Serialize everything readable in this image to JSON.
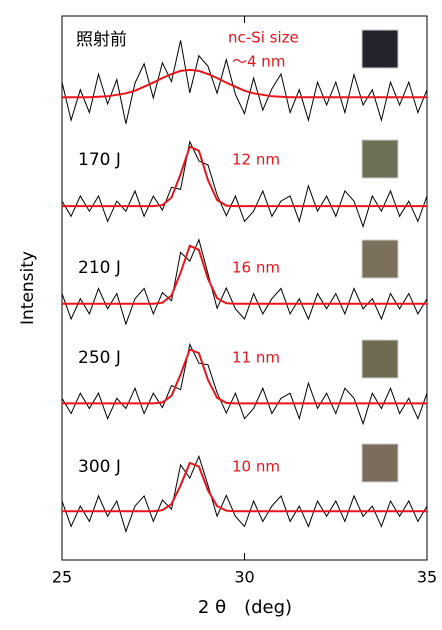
{
  "chart_data": {
    "type": "line",
    "xlabel": "2 θ　(deg)",
    "ylabel": "Intensity",
    "annotation": "nc-Si size",
    "x": [
      25,
      25.25,
      25.5,
      25.75,
      26,
      26.25,
      26.5,
      26.75,
      27,
      27.25,
      27.5,
      27.75,
      28,
      28.25,
      28.5,
      28.75,
      29,
      29.25,
      29.5,
      29.75,
      30,
      30.25,
      30.5,
      30.75,
      31,
      31.25,
      31.5,
      31.75,
      32,
      32.25,
      32.5,
      32.75,
      33,
      33.25,
      33.5,
      33.75,
      34,
      34.25,
      34.5,
      34.75,
      35
    ],
    "xlim": [
      25,
      35
    ],
    "xticks": [
      25,
      30,
      35
    ],
    "ylim": [
      0,
      107
    ],
    "color": "#000000",
    "fit_color": "#e8141a",
    "series": [
      {
        "name": "照射前",
        "size_label": "～4 nm",
        "values": [
          94,
          86.5,
          92.5,
          88,
          95.6,
          89.7,
          94.5,
          85.8,
          93.8,
          97.6,
          90.9,
          97.8,
          94.1,
          102.2,
          91.9,
          99.2,
          97.1,
          91.8,
          98.4,
          91.6,
          87.8,
          94.8,
          88.5,
          92.7,
          95.6,
          88,
          92.5,
          86.5,
          94,
          89.5,
          94,
          88,
          95.5,
          89.5,
          92.5,
          86.5,
          94,
          89.5,
          94,
          88,
          92.5
        ],
        "fit": [
          91,
          91,
          91,
          91,
          91.1,
          91.2,
          91.5,
          91.8,
          92.3,
          93.1,
          93.9,
          94.8,
          95.6,
          96.2,
          96.4,
          96.2,
          95.6,
          94.8,
          93.9,
          93.1,
          92.3,
          91.8,
          91.5,
          91.2,
          91.1,
          91,
          91,
          91,
          91,
          91,
          91,
          91,
          91,
          91,
          91,
          91,
          91,
          91,
          91,
          91,
          91
        ]
      },
      {
        "name": "170 J",
        "size_label": "12 nm",
        "values": [
          70.6,
          67.6,
          71.6,
          68.6,
          71.6,
          66.6,
          70.6,
          68.6,
          72.6,
          67.6,
          71.6,
          68.8,
          73.3,
          72.9,
          82.3,
          78.5,
          77.7,
          71.8,
          67.7,
          71.6,
          66.6,
          68.6,
          72.6,
          67.6,
          70.6,
          71.6,
          66.6,
          73.6,
          68.6,
          71.6,
          67.6,
          72.6,
          70.6,
          65.6,
          71.6,
          68.6,
          72.6,
          67.6,
          70.6,
          66.6,
          71.6
        ],
        "fit": [
          69.6,
          69.6,
          69.6,
          69.6,
          69.6,
          69.6,
          69.6,
          69.6,
          69.6,
          69.6,
          69.6,
          69.8,
          71.3,
          75.9,
          81.3,
          80.5,
          74.7,
          70.8,
          69.7,
          69.6,
          69.6,
          69.6,
          69.6,
          69.6,
          69.6,
          69.6,
          69.6,
          69.6,
          69.6,
          69.6,
          69.6,
          69.6,
          69.6,
          69.6,
          69.6,
          69.6,
          69.6,
          69.6,
          69.6,
          69.6,
          69.6
        ]
      },
      {
        "name": "210 J",
        "size_label": "16 nm",
        "values": [
          52.4,
          47.4,
          51.4,
          48.4,
          53.4,
          49.4,
          52.4,
          46.4,
          51.4,
          53.4,
          48.4,
          52.6,
          51,
          60.5,
          58.8,
          63,
          56.3,
          49.5,
          53.5,
          49.4,
          47.4,
          52.4,
          48.4,
          51.4,
          53.4,
          48.4,
          51.4,
          47.4,
          52.4,
          49.4,
          52.4,
          48.4,
          53.4,
          49.4,
          51.4,
          47.4,
          52.4,
          49.4,
          52.4,
          48.4,
          51.4
        ],
        "fit": [
          50.4,
          50.4,
          50.4,
          50.4,
          50.4,
          50.4,
          50.4,
          50.4,
          50.4,
          50.4,
          50.4,
          50.6,
          52,
          56.5,
          61.8,
          61,
          55.3,
          51.5,
          50.5,
          50.4,
          50.4,
          50.4,
          50.4,
          50.4,
          50.4,
          50.4,
          50.4,
          50.4,
          50.4,
          50.4,
          50.4,
          50.4,
          50.4,
          50.4,
          50.4,
          50.4,
          50.4,
          50.4,
          50.4,
          50.4,
          50.4
        ]
      },
      {
        "name": "250 J",
        "size_label": "11 nm",
        "values": [
          31.8,
          28.8,
          32.8,
          29.8,
          32.8,
          27.8,
          31.8,
          29.8,
          33.8,
          28.8,
          32.8,
          30,
          34.3,
          33.5,
          42.4,
          38.7,
          38.4,
          32.9,
          28.9,
          32.8,
          27.8,
          29.8,
          33.8,
          28.8,
          31.8,
          32.8,
          27.8,
          34.8,
          29.8,
          32.8,
          28.8,
          33.8,
          31.8,
          26.8,
          32.8,
          29.8,
          33.8,
          28.8,
          31.8,
          27.8,
          32.8
        ],
        "fit": [
          30.8,
          30.8,
          30.8,
          30.8,
          30.8,
          30.8,
          30.8,
          30.8,
          30.8,
          30.8,
          30.8,
          31,
          32.3,
          36.5,
          41.4,
          40.7,
          35.4,
          31.9,
          30.9,
          30.8,
          30.8,
          30.8,
          30.8,
          30.8,
          30.8,
          30.8,
          30.8,
          30.8,
          30.8,
          30.8,
          30.8,
          30.8,
          30.8,
          30.8,
          30.8,
          30.8,
          30.8,
          30.8,
          30.8,
          30.8,
          30.8
        ]
      },
      {
        "name": "300 J",
        "size_label": "10 nm",
        "values": [
          11.6,
          6.6,
          10.6,
          7.6,
          12.6,
          8.6,
          11.6,
          5.6,
          10.6,
          12.6,
          7.6,
          11.8,
          10,
          18.7,
          16.1,
          20.4,
          14.7,
          8.6,
          12.7,
          8.6,
          6.6,
          11.6,
          7.6,
          10.6,
          12.6,
          7.6,
          10.6,
          6.6,
          11.6,
          8.6,
          11.6,
          7.6,
          12.6,
          8.6,
          10.6,
          6.6,
          11.6,
          8.6,
          11.6,
          7.6,
          10.6
        ],
        "fit": [
          9.6,
          9.6,
          9.6,
          9.6,
          9.6,
          9.6,
          9.6,
          9.6,
          9.6,
          9.6,
          9.6,
          9.8,
          11,
          14.7,
          19.1,
          18.4,
          13.7,
          10.6,
          9.7,
          9.6,
          9.6,
          9.6,
          9.6,
          9.6,
          9.6,
          9.6,
          9.6,
          9.6,
          9.6,
          9.6,
          9.6,
          9.6,
          9.6,
          9.6,
          9.6,
          9.6,
          9.6,
          9.6,
          9.6,
          9.6,
          9.6
        ]
      }
    ]
  }
}
